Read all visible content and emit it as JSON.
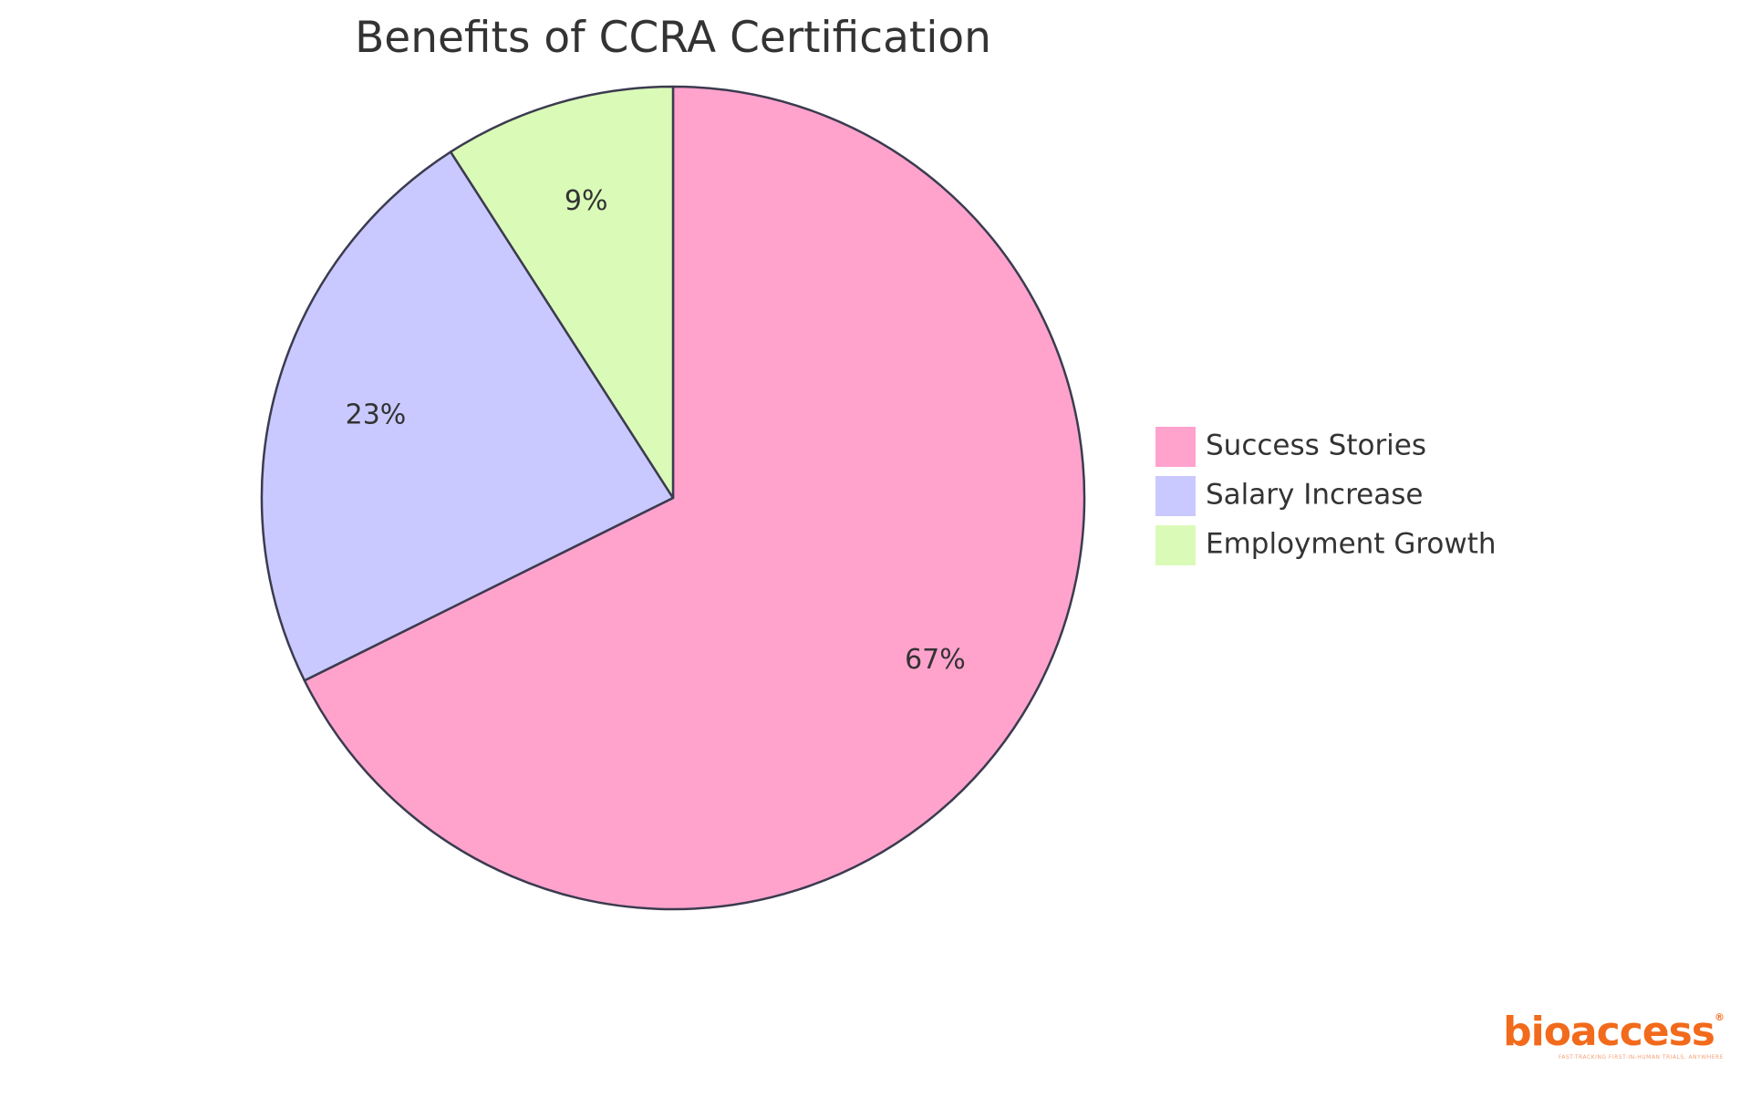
{
  "chart_data": {
    "type": "pie",
    "title": "Benefits of CCRA Certification",
    "slices": [
      {
        "label": "Success Stories",
        "value": 67,
        "display": "67%",
        "color": "#ffa3cd"
      },
      {
        "label": "Salary Increase",
        "value": 23,
        "display": "23%",
        "color": "#c9c9ff"
      },
      {
        "label": "Employment Growth",
        "value": 9,
        "display": "9%",
        "color": "#dafbb8"
      }
    ],
    "start_angle_deg": 0,
    "direction": "clockwise",
    "stroke_color": "#3b3b4f",
    "legend_position": "right"
  },
  "logo": {
    "text": "bioaccess",
    "registered_mark": "®",
    "tagline": "FAST-TRACKING FIRST-IN-HUMAN TRIALS, ANYWHERE"
  }
}
